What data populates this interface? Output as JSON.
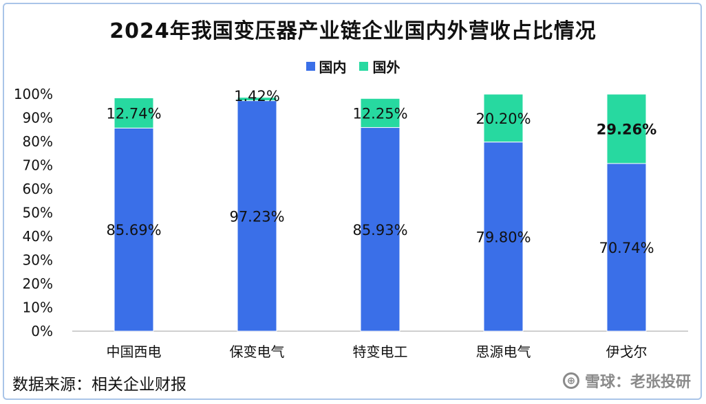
{
  "title": "2024年我国变压器产业链企业国内外营收占比情况",
  "source": "数据来源：相关企业财报",
  "watermark": "雪球：老张投研",
  "colors": {
    "domestic": "#3a6fe8",
    "foreign": "#27d9a0",
    "grid": "#d9d9d9",
    "axis": "#bfbfbf"
  },
  "chart_data": {
    "type": "bar",
    "stacked": true,
    "title": "2024年我国变压器产业链企业国内外营收占比情况",
    "categories": [
      "中国西电",
      "保变电气",
      "特变电工",
      "思源电气",
      "伊戈尔"
    ],
    "series": [
      {
        "name": "国内",
        "values": [
          85.69,
          97.23,
          85.93,
          79.8,
          70.74
        ],
        "labels": [
          "85.69%",
          "97.23%",
          "85.93%",
          "79.80%",
          "70.74%"
        ]
      },
      {
        "name": "国外",
        "values": [
          12.74,
          1.42,
          12.25,
          20.2,
          29.26
        ],
        "labels": [
          "12.74%",
          "1.42%",
          "12.25%",
          "20.20%",
          "29.26%"
        ]
      }
    ],
    "yticks": [
      "0%",
      "10%",
      "20%",
      "30%",
      "40%",
      "50%",
      "60%",
      "70%",
      "80%",
      "90%",
      "100%"
    ],
    "ylim": [
      0,
      100
    ],
    "legend_position": "top",
    "grid": false
  }
}
